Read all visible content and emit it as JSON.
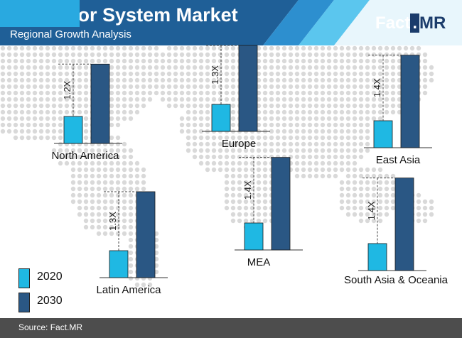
{
  "header": {
    "title": "Conveyor System Market",
    "subtitle": "Regional Growth Analysis",
    "logo_part1": "Fact",
    "logo_dot": ".",
    "logo_part2": "MR"
  },
  "colors": {
    "header_dark": "#1f5f97",
    "header_stripe_light": "#5bc6ee",
    "header_stripe_mid": "#2d8fcf",
    "bar_2020": "#1fb8e3",
    "bar_2030": "#2a5784",
    "map_dots": "#d9d9d9",
    "footer": "#4d4d4d"
  },
  "chart_data": [
    {
      "type": "bar",
      "title": "North America",
      "categories": [
        "2020",
        "2030"
      ],
      "values": [
        1.0,
        1.2
      ],
      "annotation": "1.2X"
    },
    {
      "type": "bar",
      "title": "Europe",
      "categories": [
        "2020",
        "2030"
      ],
      "values": [
        1.0,
        1.3
      ],
      "annotation": "1.3X"
    },
    {
      "type": "bar",
      "title": "East Asia",
      "categories": [
        "2020",
        "2030"
      ],
      "values": [
        1.0,
        1.4
      ],
      "annotation": "1.4X"
    },
    {
      "type": "bar",
      "title": "MEA",
      "categories": [
        "2020",
        "2030"
      ],
      "values": [
        1.0,
        1.4
      ],
      "annotation": "1.4X"
    },
    {
      "type": "bar",
      "title": "Latin America",
      "categories": [
        "2020",
        "2030"
      ],
      "values": [
        1.0,
        1.3
      ],
      "annotation": "1.3X"
    },
    {
      "type": "bar",
      "title": "South Asia & Oceania",
      "categories": [
        "2020",
        "2030"
      ],
      "values": [
        1.0,
        1.4
      ],
      "annotation": "1.4X"
    }
  ],
  "legend": [
    {
      "label": "2020",
      "color": "#1fb8e3"
    },
    {
      "label": "2030",
      "color": "#2a5784"
    }
  ],
  "footer": {
    "source": "Source: Fact.MR"
  }
}
